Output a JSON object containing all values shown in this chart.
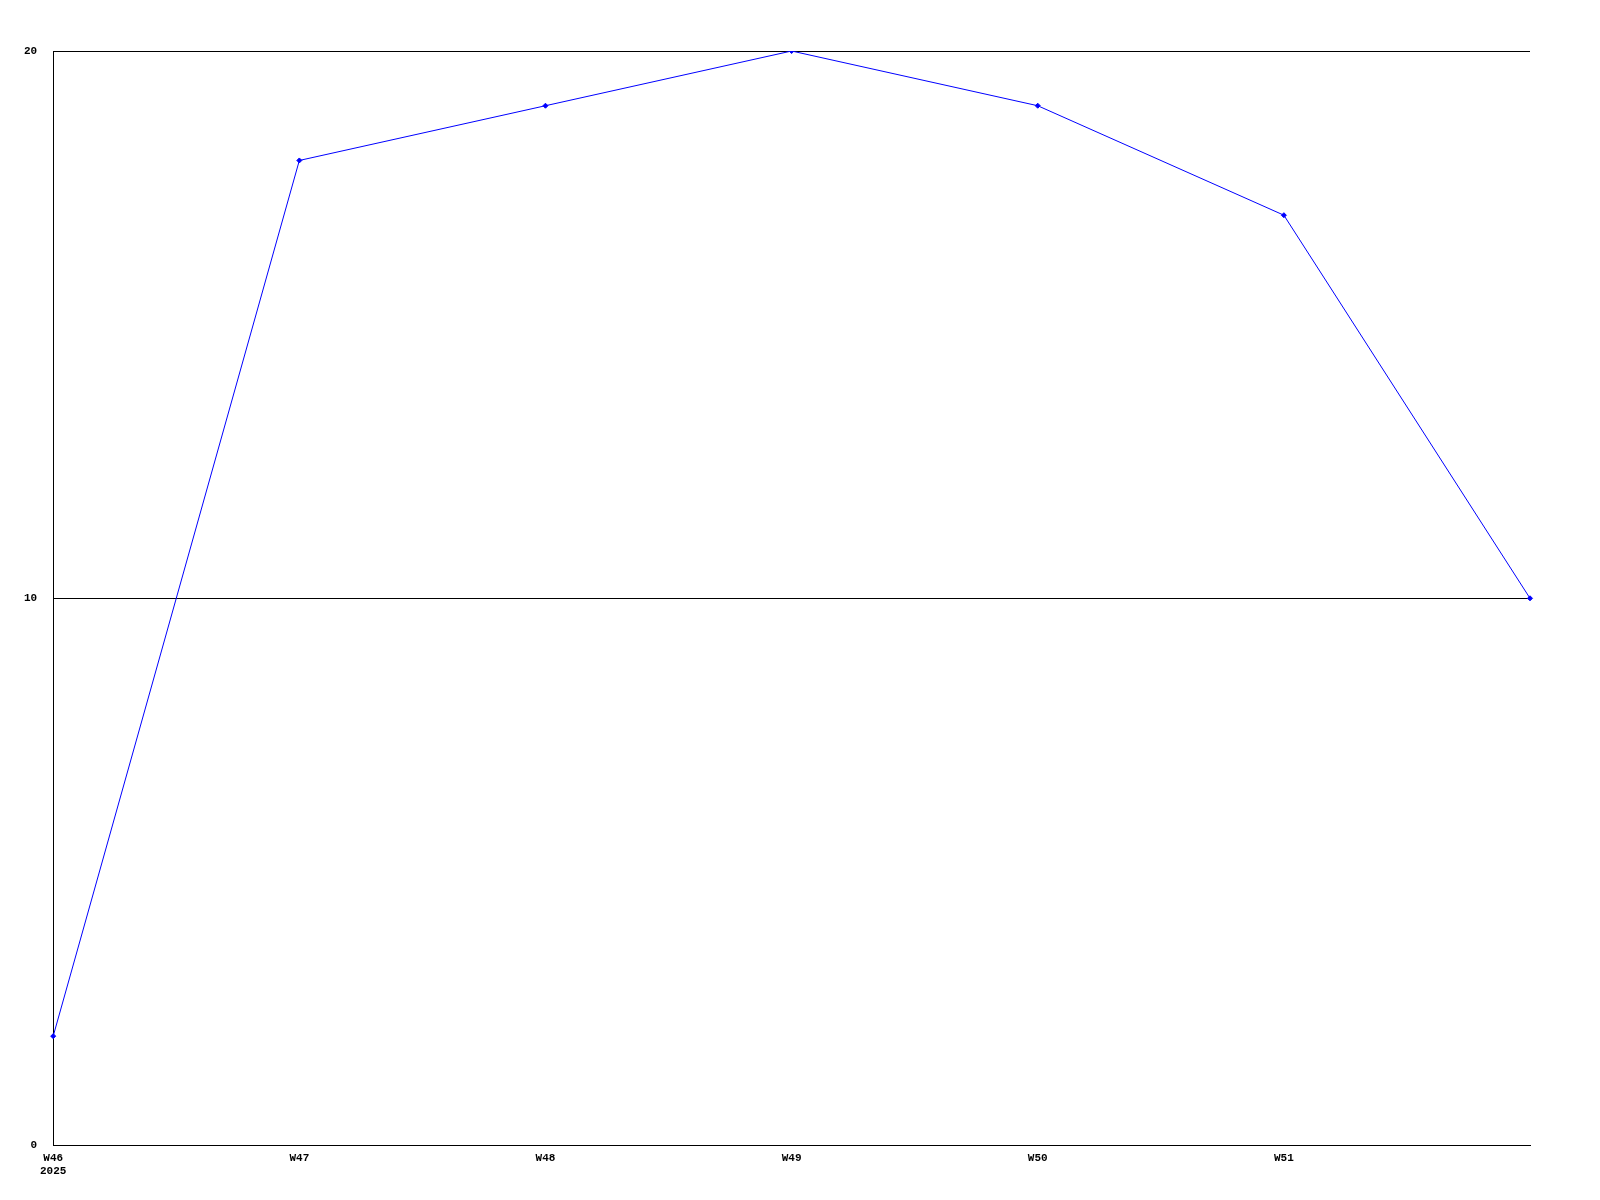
{
  "chart_data": {
    "type": "line",
    "categories": [
      "W46\n2025",
      "W47",
      "W48",
      "W49",
      "W50",
      "W51",
      null
    ],
    "series": [
      {
        "color": "#0000ff",
        "values": [
          2,
          18,
          19,
          20,
          19,
          17,
          10
        ]
      }
    ],
    "ylim": [
      0,
      20
    ],
    "yticks": [
      0,
      10,
      20
    ],
    "grid": "y",
    "legend": false,
    "marker": "diamond",
    "line_style": "solid"
  }
}
